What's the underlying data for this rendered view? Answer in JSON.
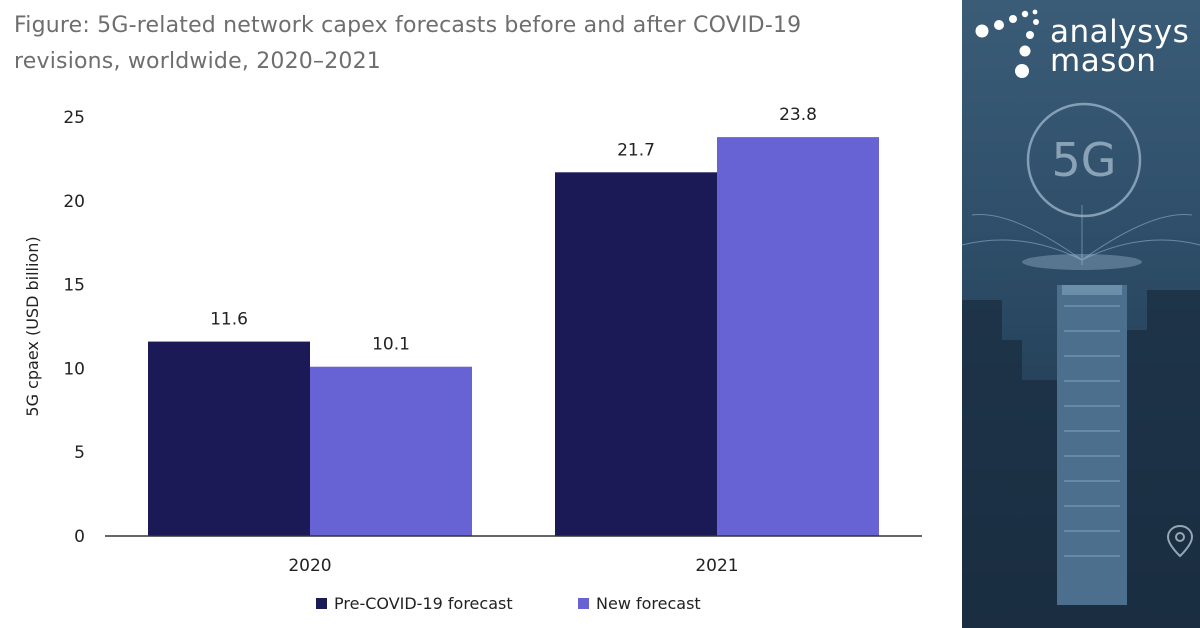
{
  "figure_title_lines": [
    "Figure: 5G-related network capex forecasts before and after COVID-19",
    "revisions, worldwide, 2020–2021"
  ],
  "brand": {
    "line1": "analysys",
    "line2": "mason",
    "badge_text": "5G",
    "logo_icon": "dotted-swirl-logo-icon",
    "pin_icon": "location-pin-icon"
  },
  "colors": {
    "pre_covid": "#1b1a57",
    "new_forecast": "#6763d4",
    "axis_text": "#222222",
    "title_text": "#6e6e6e",
    "panel_bg": "#2f4f6a"
  },
  "chart_data": {
    "type": "bar",
    "categories": [
      "2020",
      "2021"
    ],
    "series": [
      {
        "name": "Pre-COVID-19 forecast",
        "values": [
          11.6,
          21.7
        ],
        "labels": [
          "11.6",
          "21.7"
        ]
      },
      {
        "name": "New forecast",
        "values": [
          10.1,
          23.8
        ],
        "labels": [
          "10.1",
          "23.8"
        ]
      }
    ],
    "ylabel": "5G cpaex (USD billion)",
    "xlabel": "",
    "ylim": [
      0,
      25
    ],
    "yticks": [
      "0",
      "5",
      "10",
      "15",
      "20",
      "25"
    ],
    "grid": false,
    "legend_position": "bottom-center"
  }
}
